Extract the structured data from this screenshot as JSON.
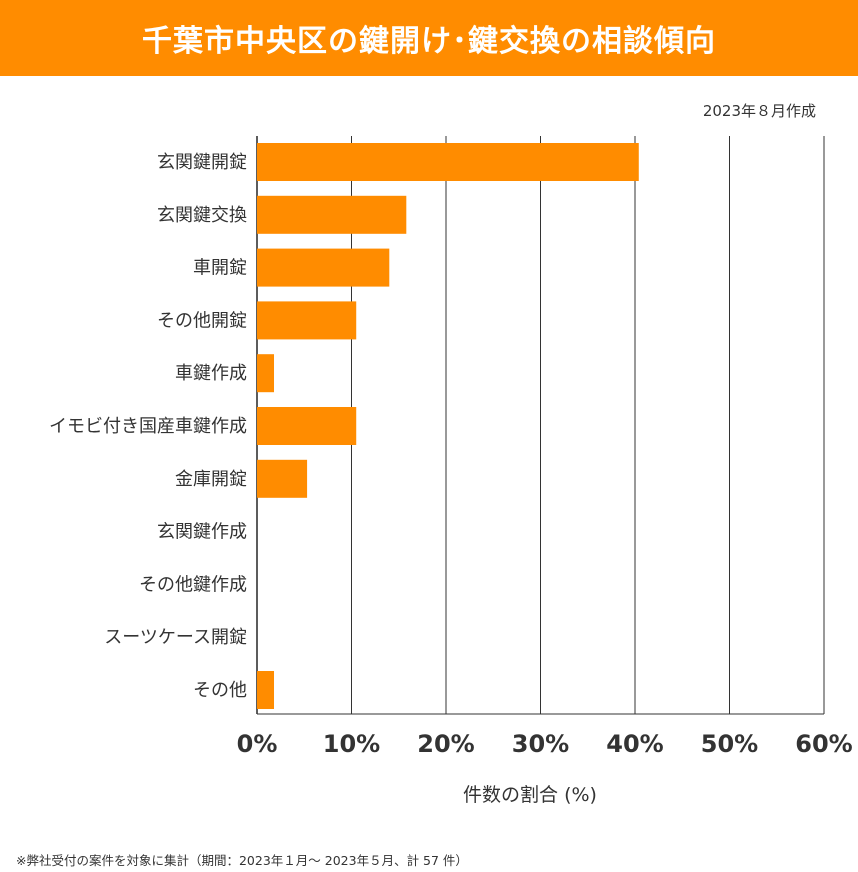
{
  "title": "千葉市中央区の鍵開け･鍵交換の相談傾向",
  "created": "2023年８月作成",
  "footnote": "※弊社受付の案件を対象に集計（期間：2023年１月～ 2023年５月、計 57 件）",
  "colors": {
    "accent": "#ff8c00",
    "bar": "#ff8c00",
    "grid": "#333333"
  },
  "chart_data": {
    "type": "bar",
    "orientation": "horizontal",
    "categories": [
      "玄関鍵開錠",
      "玄関鍵交換",
      "車開錠",
      "その他開錠",
      "車鍵作成",
      "イモビ付き国産車鍵作成",
      "金庫開錠",
      "玄関鍵作成",
      "その他鍵作成",
      "スーツケース開錠",
      "その他"
    ],
    "values": [
      40.4,
      15.8,
      14.0,
      10.5,
      1.8,
      10.5,
      5.3,
      0,
      0,
      0,
      1.8
    ],
    "xlim": [
      0,
      60
    ],
    "xticks": [
      0,
      10,
      20,
      30,
      40,
      50,
      60
    ],
    "xtick_labels": [
      "0%",
      "10%",
      "20%",
      "30%",
      "40%",
      "50%",
      "60%"
    ],
    "xlabel": "件数の割合 (%)",
    "ylabel": "",
    "grid": true
  }
}
